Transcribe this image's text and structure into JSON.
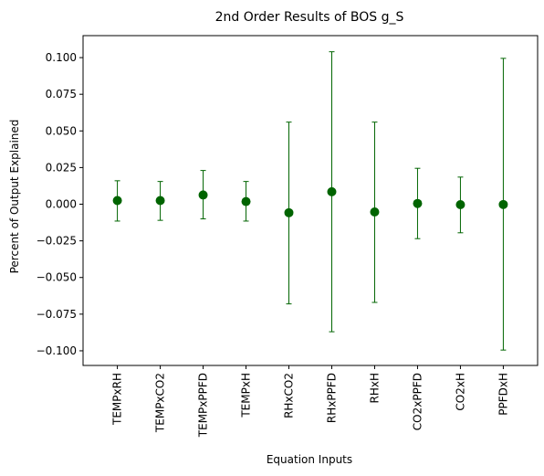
{
  "chart_data": {
    "type": "scatter",
    "title": "2nd Order Results of BOS g_S",
    "xlabel": "Equation Inputs",
    "ylabel": "Percent of Output Explained",
    "ylim": [
      -0.11,
      0.115
    ],
    "grid": false,
    "yticks": [
      -0.1,
      -0.075,
      -0.05,
      -0.025,
      0.0,
      0.025,
      0.05,
      0.075,
      0.1
    ],
    "ytick_labels": [
      "−0.100",
      "−0.075",
      "−0.050",
      "−0.025",
      "0.000",
      "0.025",
      "0.050",
      "0.075",
      "0.100"
    ],
    "categories": [
      "TEMPxRH",
      "TEMPxCO2",
      "TEMPxPPFD",
      "TEMPxH",
      "RHxCO2",
      "RHxPPFD",
      "RHxH",
      "CO2xPPFD",
      "CO2xH",
      "PPFDxH"
    ],
    "values": [
      0.0025,
      0.0025,
      0.0063,
      0.0018,
      -0.0058,
      0.0085,
      -0.0053,
      0.0005,
      -0.0003,
      -0.0002
    ],
    "error_low": [
      -0.0115,
      -0.011,
      -0.01,
      -0.0115,
      -0.068,
      -0.087,
      -0.067,
      -0.0235,
      -0.0195,
      -0.0995
    ],
    "error_high": [
      0.016,
      0.0155,
      0.023,
      0.0155,
      0.056,
      0.104,
      0.056,
      0.0245,
      0.0185,
      0.0995
    ],
    "colors": {
      "marker": "#006400",
      "errorbar": "#006400",
      "axes": "#000000"
    }
  }
}
